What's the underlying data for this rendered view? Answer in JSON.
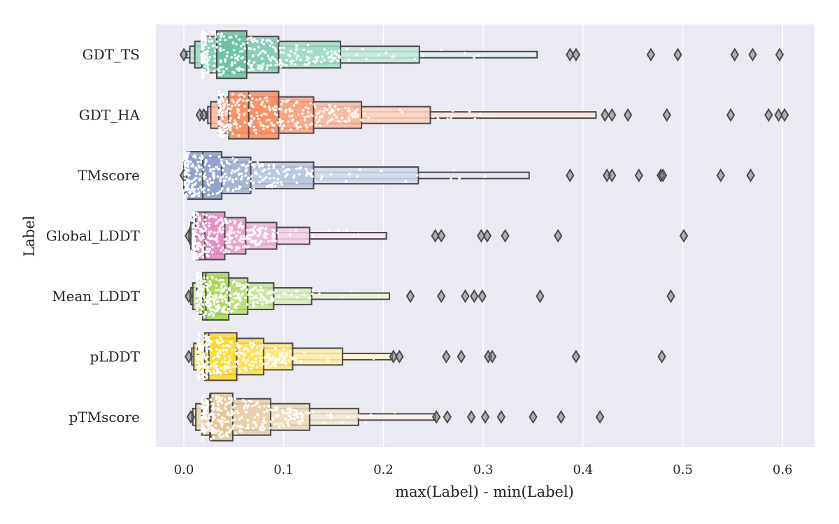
{
  "chart_data": {
    "type": "boxen",
    "xlabel": "max(Label) - min(Label)",
    "ylabel": "Label",
    "xlim": [
      -0.028,
      0.632
    ],
    "xticks": [
      "0.0",
      "0.1",
      "0.2",
      "0.3",
      "0.4",
      "0.5",
      "0.6"
    ],
    "grid": true,
    "background": "#eaeaf2",
    "categories": [
      "GDT_TS",
      "GDT_HA",
      "TMscore",
      "Global_LDDT",
      "Mean_LDDT",
      "pLDDT",
      "pTMscore"
    ],
    "series": [
      {
        "name": "GDT_TS",
        "color": "#66c2a5",
        "median": 0.033,
        "boxes": [
          [
            0.033,
            0.063
          ],
          [
            0.018,
            0.095
          ],
          [
            0.011,
            0.157
          ],
          [
            0.006,
            0.236
          ],
          [
            0.002,
            0.354
          ]
        ],
        "outliers": [
          0.0,
          0.387,
          0.393,
          0.468,
          0.495,
          0.552,
          0.57,
          0.597
        ]
      },
      {
        "name": "GDT_HA",
        "color": "#fc8d62",
        "median": 0.065,
        "boxes": [
          [
            0.045,
            0.095
          ],
          [
            0.035,
            0.13
          ],
          [
            0.027,
            0.178
          ],
          [
            0.024,
            0.247
          ],
          [
            0.022,
            0.413
          ]
        ],
        "outliers": [
          0.016,
          0.02,
          0.422,
          0.429,
          0.445,
          0.484,
          0.548,
          0.586,
          0.596,
          0.602
        ]
      },
      {
        "name": "TMscore",
        "color": "#8da0cb",
        "median": 0.019,
        "boxes": [
          [
            0.002,
            0.038
          ],
          [
            0.001,
            0.067
          ],
          [
            0.0,
            0.13
          ],
          [
            0.0,
            0.235
          ],
          [
            0.0,
            0.346
          ]
        ],
        "outliers": [
          0.0,
          0.387,
          0.424,
          0.429,
          0.456,
          0.478,
          0.48,
          0.538,
          0.568
        ]
      },
      {
        "name": "Global_LDDT",
        "color": "#e78ac3",
        "median": 0.021,
        "boxes": [
          [
            0.012,
            0.041
          ],
          [
            0.009,
            0.062
          ],
          [
            0.007,
            0.093
          ],
          [
            0.006,
            0.126
          ],
          [
            0.005,
            0.203
          ]
        ],
        "outliers": [
          0.005,
          0.252,
          0.258,
          0.298,
          0.304,
          0.322,
          0.375,
          0.501
        ]
      },
      {
        "name": "Mean_LDDT",
        "color": "#a6d854",
        "median": 0.022,
        "boxes": [
          [
            0.019,
            0.045
          ],
          [
            0.013,
            0.064
          ],
          [
            0.009,
            0.09
          ],
          [
            0.007,
            0.128
          ],
          [
            0.006,
            0.206
          ]
        ],
        "outliers": [
          0.005,
          0.227,
          0.258,
          0.282,
          0.291,
          0.299,
          0.357,
          0.488
        ]
      },
      {
        "name": "pLDDT",
        "color": "#ffd92f",
        "median": 0.025,
        "boxes": [
          [
            0.021,
            0.053
          ],
          [
            0.014,
            0.08
          ],
          [
            0.01,
            0.109
          ],
          [
            0.008,
            0.159
          ],
          [
            0.007,
            0.209
          ]
        ],
        "outliers": [
          0.005,
          0.21,
          0.216,
          0.263,
          0.278,
          0.305,
          0.309,
          0.393,
          0.479
        ]
      },
      {
        "name": "pTMscore",
        "color": "#e5c494",
        "median": 0.026,
        "boxes": [
          [
            0.027,
            0.049
          ],
          [
            0.018,
            0.087
          ],
          [
            0.012,
            0.126
          ],
          [
            0.009,
            0.175
          ],
          [
            0.008,
            0.252
          ]
        ],
        "outliers": [
          0.007,
          0.253,
          0.264,
          0.288,
          0.302,
          0.318,
          0.35,
          0.378,
          0.417
        ]
      }
    ]
  }
}
